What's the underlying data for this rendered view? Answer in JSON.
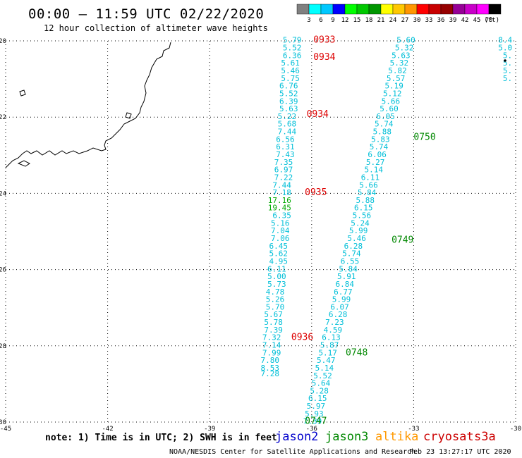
{
  "title": "00:00 – 11:59 UTC 02/22/2020",
  "subtitle": "12 hour collection of altimeter wave heights",
  "scale": {
    "labels": [
      "3",
      "6",
      "9",
      "12",
      "15",
      "18",
      "21",
      "24",
      "27",
      "30",
      "33",
      "36",
      "39",
      "42",
      "45",
      "70"
    ],
    "unit": "(ft)",
    "colors": [
      "#808080",
      "#00ffff",
      "#00c8ff",
      "#0000ff",
      "#00ff00",
      "#00c800",
      "#009600",
      "#ffff00",
      "#ffc800",
      "#ff9600",
      "#ff0000",
      "#c80000",
      "#960000",
      "#960096",
      "#c800c8",
      "#ff00ff",
      "#000000"
    ]
  },
  "note": "note:  1) Time is in UTC;  2) SWH is in feet",
  "satellites": [
    {
      "label": "jason2",
      "color": "#0000cc"
    },
    {
      "label": "jason3",
      "color": "#008800"
    },
    {
      "label": "altika",
      "color": "#ff9900"
    },
    {
      "label": "cryosat",
      "color": "#cc0000"
    },
    {
      "label": "s3a",
      "color": "#cc0000"
    }
  ],
  "credit_left": "NOAA/NESDIS Center for Satellite Applications and Research",
  "credit_right": "Feb 23 13:27:17 UTC 2020",
  "chart_data": {
    "type": "scatter",
    "xlim": [
      -45,
      -30
    ],
    "ylim": [
      -30,
      -20
    ],
    "x_ticks": [
      "-45",
      "-42",
      "-39",
      "-36",
      "-33",
      "-30"
    ],
    "x_tick_values": [
      -45,
      -42,
      -39,
      -36,
      -33,
      -30
    ],
    "y_ticks": [
      "-20",
      "-22",
      "-24",
      "-26",
      "-28",
      "-30"
    ],
    "y_tick_values": [
      -20,
      -22,
      -24,
      -26,
      -28,
      -30
    ],
    "grid": true,
    "track_cryosat": [
      {
        "lat": -20.05,
        "lon": -36.3,
        "swh": "5.79"
      },
      {
        "lat": -20.25,
        "lon": -36.3,
        "swh": "5.52"
      },
      {
        "lat": -20.45,
        "lon": -36.3,
        "swh": "6.36"
      },
      {
        "lat": -20.65,
        "lon": -36.35,
        "swh": "5.61"
      },
      {
        "lat": -20.85,
        "lon": -36.35,
        "swh": "5.46"
      },
      {
        "lat": -21.05,
        "lon": -36.35,
        "swh": "5.75"
      },
      {
        "lat": -21.25,
        "lon": -36.4,
        "swh": "6.76"
      },
      {
        "lat": -21.45,
        "lon": -36.4,
        "swh": "5.52"
      },
      {
        "lat": -21.65,
        "lon": -36.4,
        "swh": "6.39"
      },
      {
        "lat": -21.85,
        "lon": -36.4,
        "swh": "5.63"
      },
      {
        "lat": -22.05,
        "lon": -36.45,
        "swh": "5.22"
      },
      {
        "lat": -22.25,
        "lon": -36.45,
        "swh": "5.68"
      },
      {
        "lat": -22.45,
        "lon": -36.45,
        "swh": "7.44"
      },
      {
        "lat": -22.65,
        "lon": -36.5,
        "swh": "6.56"
      },
      {
        "lat": -22.85,
        "lon": -36.5,
        "swh": "6.31"
      },
      {
        "lat": -23.05,
        "lon": -36.5,
        "swh": "7.43"
      },
      {
        "lat": -23.25,
        "lon": -36.55,
        "swh": "7.35"
      },
      {
        "lat": -23.45,
        "lon": -36.55,
        "swh": "6.97"
      },
      {
        "lat": -23.65,
        "lon": -36.55,
        "swh": "7.22"
      },
      {
        "lat": -23.85,
        "lon": -36.6,
        "swh": "7.44"
      },
      {
        "lat": -24.05,
        "lon": -36.6,
        "swh": "7.18"
      },
      {
        "lat": -24.25,
        "lon": -36.6,
        "swh": "17.16"
      },
      {
        "lat": -24.45,
        "lon": -36.6,
        "swh": "19.45"
      },
      {
        "lat": -24.65,
        "lon": -36.6,
        "swh": "6.35"
      },
      {
        "lat": -24.85,
        "lon": -36.65,
        "swh": "5.16"
      },
      {
        "lat": -25.05,
        "lon": -36.65,
        "swh": "7.04"
      },
      {
        "lat": -25.25,
        "lon": -36.65,
        "swh": "7.06"
      },
      {
        "lat": -25.45,
        "lon": -36.7,
        "swh": "6.45"
      },
      {
        "lat": -25.65,
        "lon": -36.7,
        "swh": "5.62"
      },
      {
        "lat": -25.85,
        "lon": -36.7,
        "swh": "4.95"
      },
      {
        "lat": -26.05,
        "lon": -36.75,
        "swh": "6.11"
      },
      {
        "lat": -26.25,
        "lon": -36.75,
        "swh": "5.00"
      },
      {
        "lat": -26.45,
        "lon": -36.75,
        "swh": "5.73"
      },
      {
        "lat": -26.65,
        "lon": -36.8,
        "swh": "4.78"
      },
      {
        "lat": -26.85,
        "lon": -36.8,
        "swh": "5.26"
      },
      {
        "lat": -27.05,
        "lon": -36.8,
        "swh": "5.70"
      },
      {
        "lat": -27.25,
        "lon": -36.85,
        "swh": "5.67"
      },
      {
        "lat": -27.45,
        "lon": -36.85,
        "swh": "5.78"
      },
      {
        "lat": -27.65,
        "lon": -36.85,
        "swh": "7.39"
      },
      {
        "lat": -27.85,
        "lon": -36.9,
        "swh": "7.32"
      },
      {
        "lat": -28.05,
        "lon": -36.9,
        "swh": "7.14"
      },
      {
        "lat": -28.25,
        "lon": -36.9,
        "swh": "7.99"
      },
      {
        "lat": -28.45,
        "lon": -36.95,
        "swh": "7.80"
      },
      {
        "lat": -28.65,
        "lon": -36.95,
        "swh": "8.53"
      },
      {
        "lat": -28.8,
        "lon": -36.95,
        "swh": "7.28"
      }
    ],
    "track_jason3": [
      {
        "lat": -20.05,
        "lon": -32.95,
        "swh": "5.60"
      },
      {
        "lat": -20.25,
        "lon": -33.0,
        "swh": "5.32"
      },
      {
        "lat": -20.45,
        "lon": -33.1,
        "swh": "5.63"
      },
      {
        "lat": -20.65,
        "lon": -33.15,
        "swh": "5.32"
      },
      {
        "lat": -20.85,
        "lon": -33.2,
        "swh": "5.82"
      },
      {
        "lat": -21.05,
        "lon": -33.25,
        "swh": "5.57"
      },
      {
        "lat": -21.25,
        "lon": -33.3,
        "swh": "5.19"
      },
      {
        "lat": -21.45,
        "lon": -33.35,
        "swh": "5.12"
      },
      {
        "lat": -21.65,
        "lon": -33.4,
        "swh": "5.66"
      },
      {
        "lat": -21.85,
        "lon": -33.45,
        "swh": "5.60"
      },
      {
        "lat": -22.05,
        "lon": -33.55,
        "swh": "6.05"
      },
      {
        "lat": -22.25,
        "lon": -33.6,
        "swh": "5.74"
      },
      {
        "lat": -22.45,
        "lon": -33.65,
        "swh": "5.88"
      },
      {
        "lat": -22.65,
        "lon": -33.7,
        "swh": "5.83"
      },
      {
        "lat": -22.85,
        "lon": -33.75,
        "swh": "5.74"
      },
      {
        "lat": -23.05,
        "lon": -33.8,
        "swh": "6.06"
      },
      {
        "lat": -23.25,
        "lon": -33.85,
        "swh": "5.27"
      },
      {
        "lat": -23.45,
        "lon": -33.9,
        "swh": "5.14"
      },
      {
        "lat": -23.65,
        "lon": -34.0,
        "swh": "6.11"
      },
      {
        "lat": -23.85,
        "lon": -34.05,
        "swh": "5.66"
      },
      {
        "lat": -24.05,
        "lon": -34.1,
        "swh": "5.84"
      },
      {
        "lat": -24.25,
        "lon": -34.15,
        "swh": "5.88"
      },
      {
        "lat": -24.45,
        "lon": -34.2,
        "swh": "6.15"
      },
      {
        "lat": -24.65,
        "lon": -34.25,
        "swh": "5.56"
      },
      {
        "lat": -24.85,
        "lon": -34.3,
        "swh": "5.24"
      },
      {
        "lat": -25.05,
        "lon": -34.35,
        "swh": "5.99"
      },
      {
        "lat": -25.25,
        "lon": -34.4,
        "swh": "5.46"
      },
      {
        "lat": -25.45,
        "lon": -34.5,
        "swh": "6.28"
      },
      {
        "lat": -25.65,
        "lon": -34.55,
        "swh": "5.74"
      },
      {
        "lat": -25.85,
        "lon": -34.6,
        "swh": "6.55"
      },
      {
        "lat": -26.05,
        "lon": -34.65,
        "swh": "5.84"
      },
      {
        "lat": -26.25,
        "lon": -34.7,
        "swh": "5.91"
      },
      {
        "lat": -26.45,
        "lon": -34.75,
        "swh": "6.84"
      },
      {
        "lat": -26.65,
        "lon": -34.8,
        "swh": "6.77"
      },
      {
        "lat": -26.85,
        "lon": -34.85,
        "swh": "5.99"
      },
      {
        "lat": -27.05,
        "lon": -34.9,
        "swh": "6.07"
      },
      {
        "lat": -27.25,
        "lon": -34.95,
        "swh": "6.28"
      },
      {
        "lat": -27.45,
        "lon": -35.05,
        "swh": "7.23"
      },
      {
        "lat": -27.65,
        "lon": -35.1,
        "swh": "4.59"
      },
      {
        "lat": -27.85,
        "lon": -35.15,
        "swh": "6.13"
      },
      {
        "lat": -28.05,
        "lon": -35.2,
        "swh": "5.87"
      },
      {
        "lat": -28.25,
        "lon": -35.25,
        "swh": "5.17"
      },
      {
        "lat": -28.45,
        "lon": -35.3,
        "swh": "5.47"
      },
      {
        "lat": -28.65,
        "lon": -35.35,
        "swh": "5.14"
      },
      {
        "lat": -28.85,
        "lon": -35.4,
        "swh": "5.52"
      },
      {
        "lat": -29.05,
        "lon": -35.45,
        "swh": "5.64"
      },
      {
        "lat": -29.25,
        "lon": -35.5,
        "swh": "5.28"
      },
      {
        "lat": -29.45,
        "lon": -35.55,
        "swh": "6.15"
      },
      {
        "lat": -29.65,
        "lon": -35.6,
        "swh": "5.97"
      },
      {
        "lat": -29.85,
        "lon": -35.65,
        "swh": "5.93"
      },
      {
        "lat": -30.05,
        "lon": -35.7,
        "swh": "7.39"
      }
    ],
    "track_right": [
      {
        "lat": -20.05,
        "lon": -30.1,
        "swh": "8.4"
      },
      {
        "lat": -20.25,
        "lon": -30.1,
        "swh": "5.0"
      },
      {
        "lat": -20.45,
        "lon": -30.1,
        "swh": "5."
      },
      {
        "lat": -20.65,
        "lon": -30.1,
        "swh": "5."
      },
      {
        "lat": -20.85,
        "lon": -30.1,
        "swh": "5."
      },
      {
        "lat": -21.05,
        "lon": -30.1,
        "swh": "5."
      }
    ],
    "passes": [
      {
        "lat": -20.05,
        "lon": -35.95,
        "label": "0933",
        "color": "#dd0000"
      },
      {
        "lat": -20.5,
        "lon": -35.95,
        "label": "0934",
        "color": "#dd0000"
      },
      {
        "lat": -22.0,
        "lon": -36.15,
        "label": "0934",
        "color": "#dd0000"
      },
      {
        "lat": -24.05,
        "lon": -36.2,
        "label": "0935",
        "color": "#dd0000"
      },
      {
        "lat": -25.3,
        "lon": -33.65,
        "label": "0749",
        "color": "#008800"
      },
      {
        "lat": -22.6,
        "lon": -33.0,
        "label": "0750",
        "color": "#008800"
      },
      {
        "lat": -27.85,
        "lon": -36.6,
        "label": "0936",
        "color": "#dd0000"
      },
      {
        "lat": -28.25,
        "lon": -35.0,
        "label": "0748",
        "color": "#008800"
      },
      {
        "lat": -30.05,
        "lon": -36.2,
        "label": "0747",
        "color": "#008800"
      }
    ]
  }
}
